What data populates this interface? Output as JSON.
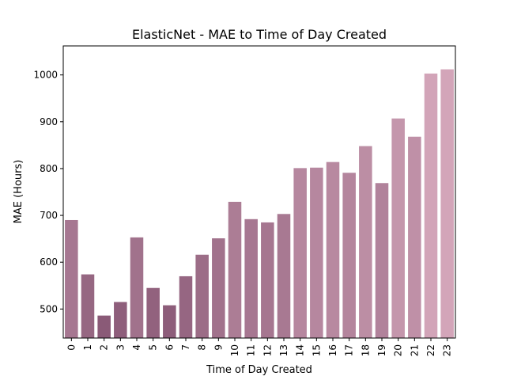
{
  "chart_data": {
    "type": "bar",
    "title": "ElasticNet - MAE to Time of Day Created",
    "xlabel": "Time of Day Created",
    "ylabel": "MAE (Hours)",
    "categories": [
      "0",
      "1",
      "2",
      "3",
      "4",
      "5",
      "6",
      "7",
      "8",
      "9",
      "10",
      "11",
      "12",
      "13",
      "14",
      "15",
      "16",
      "17",
      "18",
      "19",
      "20",
      "21",
      "22",
      "23"
    ],
    "values": [
      690,
      574,
      486,
      515,
      653,
      545,
      508,
      570,
      616,
      651,
      729,
      692,
      685,
      703,
      801,
      802,
      814,
      791,
      848,
      769,
      907,
      868,
      1003,
      1012
    ],
    "ylim": [
      438,
      1062
    ],
    "yticks": [
      500,
      600,
      700,
      800,
      900,
      1000
    ],
    "grid": false,
    "colors": {
      "dark": "#8a5a77",
      "light": "#d3a5b9"
    }
  }
}
